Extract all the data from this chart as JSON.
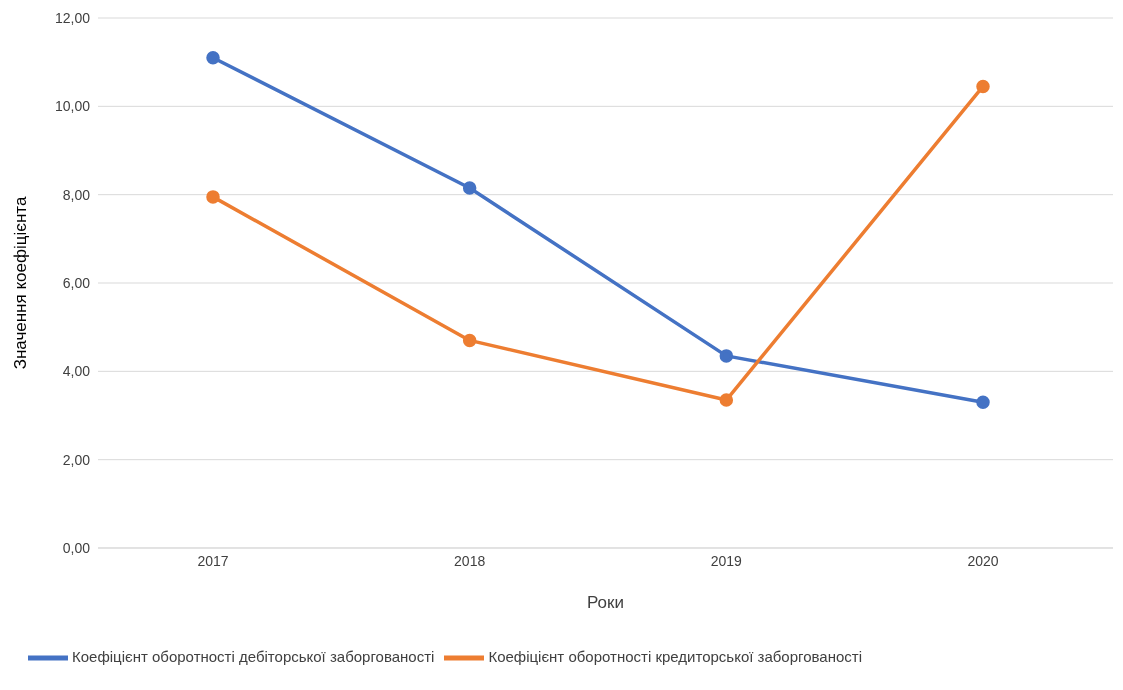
{
  "chart_data": {
    "type": "line",
    "xlabel": "Роки",
    "ylabel": "Значення коефіцієнта",
    "categories": [
      "2017",
      "2018",
      "2019",
      "2020"
    ],
    "series": [
      {
        "name": "Коефіцієнт оборотності дебіторської заборгованості",
        "color": "#4472c4",
        "values": [
          11.1,
          8.15,
          4.35,
          3.3
        ]
      },
      {
        "name": "Коефіцієнт оборотності кредиторської заборгованості",
        "color": "#ed7d31",
        "values": [
          7.95,
          4.7,
          3.35,
          10.45
        ]
      }
    ],
    "ylim": [
      0,
      12
    ],
    "yticks": [
      {
        "value": 0,
        "label": "0,00"
      },
      {
        "value": 2,
        "label": "2,00"
      },
      {
        "value": 4,
        "label": "4,00"
      },
      {
        "value": 6,
        "label": "6,00"
      },
      {
        "value": 8,
        "label": "8,00"
      },
      {
        "value": 10,
        "label": "10,00"
      },
      {
        "value": 12,
        "label": "12,00"
      }
    ],
    "grid": "y",
    "legend": "bottom",
    "marker": "circle",
    "line_style": "solid"
  }
}
